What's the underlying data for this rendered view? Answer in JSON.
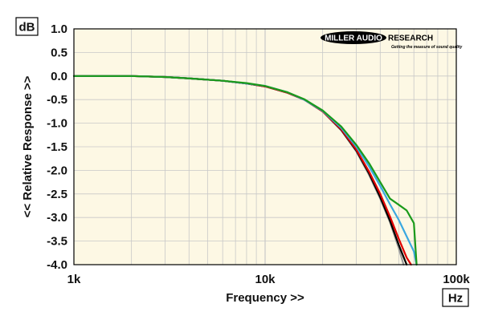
{
  "chart_data": {
    "type": "line",
    "xscale": "log",
    "xlim": [
      1000,
      100000
    ],
    "ylim": [
      -4.0,
      1.0
    ],
    "xlabel": "Frequency >>",
    "ylabel": "<< Relative Response >>",
    "x_unit": "Hz",
    "y_unit": "dB",
    "x_ticks": [
      {
        "value": 1000,
        "label": "1k"
      },
      {
        "value": 10000,
        "label": "10k"
      },
      {
        "value": 100000,
        "label": "100k"
      }
    ],
    "y_ticks": [
      {
        "value": 1.0,
        "label": "1.0"
      },
      {
        "value": 0.5,
        "label": "0.5"
      },
      {
        "value": 0.0,
        "label": "0.0"
      },
      {
        "value": -0.5,
        "label": "-0.5"
      },
      {
        "value": -1.0,
        "label": "-1.0"
      },
      {
        "value": -1.5,
        "label": "-1.5"
      },
      {
        "value": -2.0,
        "label": "-2.0"
      },
      {
        "value": -2.5,
        "label": "-2.5"
      },
      {
        "value": -3.0,
        "label": "-3.0"
      },
      {
        "value": -3.5,
        "label": "-3.5"
      },
      {
        "value": -4.0,
        "label": "-4.0"
      }
    ],
    "grid": true,
    "plot_background": "#fdf8e4",
    "grid_color": "#c8c8c8",
    "series": [
      {
        "color": "#9a9a9a",
        "points": [
          [
            1000,
            0
          ],
          [
            2000,
            0
          ],
          [
            3000,
            -0.02
          ],
          [
            4000,
            -0.05
          ],
          [
            6000,
            -0.1
          ],
          [
            8000,
            -0.16
          ],
          [
            10000,
            -0.22
          ],
          [
            13000,
            -0.35
          ],
          [
            16000,
            -0.5
          ],
          [
            20000,
            -0.75
          ],
          [
            25000,
            -1.15
          ],
          [
            30000,
            -1.6
          ],
          [
            35000,
            -2.1
          ],
          [
            40000,
            -2.6
          ],
          [
            45000,
            -3.1
          ],
          [
            50000,
            -3.65
          ],
          [
            53000,
            -4.0
          ]
        ]
      },
      {
        "color": "#000000",
        "points": [
          [
            1000,
            0
          ],
          [
            2000,
            0
          ],
          [
            3000,
            -0.02
          ],
          [
            4000,
            -0.05
          ],
          [
            6000,
            -0.1
          ],
          [
            8000,
            -0.16
          ],
          [
            10000,
            -0.22
          ],
          [
            13000,
            -0.35
          ],
          [
            16000,
            -0.5
          ],
          [
            20000,
            -0.75
          ],
          [
            25000,
            -1.14
          ],
          [
            30000,
            -1.58
          ],
          [
            35000,
            -2.07
          ],
          [
            40000,
            -2.57
          ],
          [
            45000,
            -3.07
          ],
          [
            50000,
            -3.58
          ],
          [
            55000,
            -4.0
          ]
        ]
      },
      {
        "color": "#e00000",
        "points": [
          [
            1000,
            0
          ],
          [
            2000,
            0
          ],
          [
            3000,
            -0.02
          ],
          [
            4000,
            -0.05
          ],
          [
            6000,
            -0.1
          ],
          [
            8000,
            -0.16
          ],
          [
            10000,
            -0.22
          ],
          [
            13000,
            -0.35
          ],
          [
            16000,
            -0.5
          ],
          [
            20000,
            -0.75
          ],
          [
            25000,
            -1.13
          ],
          [
            30000,
            -1.56
          ],
          [
            35000,
            -2.03
          ],
          [
            40000,
            -2.5
          ],
          [
            45000,
            -2.98
          ],
          [
            50000,
            -3.45
          ],
          [
            55000,
            -3.85
          ],
          [
            58000,
            -4.0
          ]
        ]
      },
      {
        "color": "#3aa8e0",
        "points": [
          [
            1000,
            0
          ],
          [
            2000,
            0
          ],
          [
            3000,
            -0.02
          ],
          [
            4000,
            -0.05
          ],
          [
            6000,
            -0.1
          ],
          [
            8000,
            -0.16
          ],
          [
            10000,
            -0.21
          ],
          [
            13000,
            -0.34
          ],
          [
            16000,
            -0.5
          ],
          [
            20000,
            -0.74
          ],
          [
            25000,
            -1.1
          ],
          [
            30000,
            -1.5
          ],
          [
            35000,
            -1.92
          ],
          [
            40000,
            -2.33
          ],
          [
            45000,
            -2.72
          ],
          [
            50000,
            -3.05
          ],
          [
            55000,
            -3.4
          ],
          [
            60000,
            -3.72
          ],
          [
            62000,
            -4.0
          ]
        ]
      },
      {
        "color": "#1a9a1a",
        "points": [
          [
            1000,
            0
          ],
          [
            2000,
            0
          ],
          [
            3000,
            -0.02
          ],
          [
            4000,
            -0.05
          ],
          [
            6000,
            -0.1
          ],
          [
            8000,
            -0.15
          ],
          [
            10000,
            -0.21
          ],
          [
            13000,
            -0.34
          ],
          [
            16000,
            -0.49
          ],
          [
            20000,
            -0.73
          ],
          [
            25000,
            -1.07
          ],
          [
            30000,
            -1.46
          ],
          [
            35000,
            -1.85
          ],
          [
            40000,
            -2.25
          ],
          [
            45000,
            -2.6
          ],
          [
            50000,
            -2.73
          ],
          [
            55000,
            -2.85
          ],
          [
            60000,
            -3.12
          ],
          [
            62000,
            -4.0
          ]
        ]
      }
    ]
  },
  "logo": {
    "oval_text": "MILLER AUDIO",
    "tail_text": "RESEARCH",
    "tagline": "Getting the measure of sound quality"
  }
}
